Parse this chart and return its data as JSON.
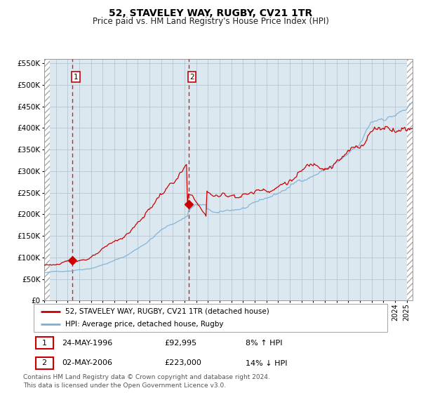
{
  "title": "52, STAVELEY WAY, RUGBY, CV21 1TR",
  "subtitle": "Price paid vs. HM Land Registry's House Price Index (HPI)",
  "legend_line1": "52, STAVELEY WAY, RUGBY, CV21 1TR (detached house)",
  "legend_line2": "HPI: Average price, detached house, Rugby",
  "sale1_date": "24-MAY-1996",
  "sale1_price": 92995,
  "sale1_hpi": "8% ↑ HPI",
  "sale2_date": "02-MAY-2006",
  "sale2_price": 223000,
  "sale2_hpi": "14% ↓ HPI",
  "footer": "Contains HM Land Registry data © Crown copyright and database right 2024.\nThis data is licensed under the Open Government Licence v3.0.",
  "red_color": "#cc0000",
  "blue_color": "#7bafd4",
  "bg_color": "#dce8f0",
  "grid_color": "#b0bfd0",
  "ylim_min": 0,
  "ylim_max": 560000,
  "start_year": 1994.0,
  "end_year": 2025.5,
  "sale1_year": 1996.39,
  "sale2_year": 2006.33,
  "title_fontsize": 10,
  "subtitle_fontsize": 8.5,
  "axis_fontsize": 7.5,
  "legend_fontsize": 7.5,
  "annotation_fontsize": 8,
  "footer_fontsize": 6.5
}
